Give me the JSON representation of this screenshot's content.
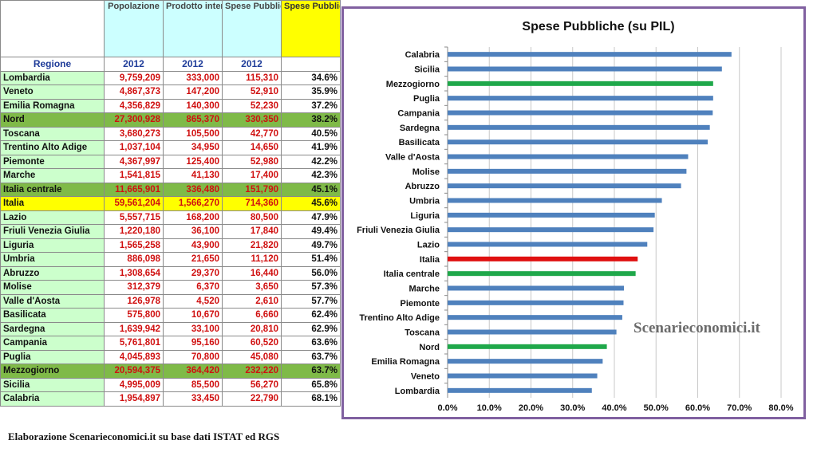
{
  "table": {
    "headers": {
      "popolazione": "Popolazione",
      "pil": "Prodotto interno lordo ai prezzi di mercato",
      "spese": "Spese Pubbliche (al netto interessi) MLN Euro",
      "spese_pil": "Spese Pubbliche (su PIL)"
    },
    "subheaders": {
      "regione": "Regione",
      "y1": "2012",
      "y2": "2012",
      "y3": "2012"
    },
    "rows": [
      {
        "name": "Lombardia",
        "pop": "9,759,209",
        "pil": "333,000",
        "spese": "115,310",
        "pct": "34.6%",
        "kind": "region"
      },
      {
        "name": "Veneto",
        "pop": "4,867,373",
        "pil": "147,200",
        "spese": "52,910",
        "pct": "35.9%",
        "kind": "region"
      },
      {
        "name": "Emilia Romagna",
        "pop": "4,356,829",
        "pil": "140,300",
        "spese": "52,230",
        "pct": "37.2%",
        "kind": "region"
      },
      {
        "name": "Nord",
        "pop": "27,300,928",
        "pil": "865,370",
        "spese": "330,350",
        "pct": "38.2%",
        "kind": "aggregate"
      },
      {
        "name": "Toscana",
        "pop": "3,680,273",
        "pil": "105,500",
        "spese": "42,770",
        "pct": "40.5%",
        "kind": "region"
      },
      {
        "name": "Trentino Alto Adige",
        "pop": "1,037,104",
        "pil": "34,950",
        "spese": "14,650",
        "pct": "41.9%",
        "kind": "region"
      },
      {
        "name": "Piemonte",
        "pop": "4,367,997",
        "pil": "125,400",
        "spese": "52,980",
        "pct": "42.2%",
        "kind": "region"
      },
      {
        "name": "Marche",
        "pop": "1,541,815",
        "pil": "41,130",
        "spese": "17,400",
        "pct": "42.3%",
        "kind": "region"
      },
      {
        "name": "Italia centrale",
        "pop": "11,665,901",
        "pil": "336,480",
        "spese": "151,790",
        "pct": "45.1%",
        "kind": "aggregate"
      },
      {
        "name": "Italia",
        "pop": "59,561,204",
        "pil": "1,566,270",
        "spese": "714,360",
        "pct": "45.6%",
        "kind": "italia"
      },
      {
        "name": "Lazio",
        "pop": "5,557,715",
        "pil": "168,200",
        "spese": "80,500",
        "pct": "47.9%",
        "kind": "region"
      },
      {
        "name": "Friuli Venezia Giulia",
        "pop": "1,220,180",
        "pil": "36,100",
        "spese": "17,840",
        "pct": "49.4%",
        "kind": "region"
      },
      {
        "name": "Liguria",
        "pop": "1,565,258",
        "pil": "43,900",
        "spese": "21,820",
        "pct": "49.7%",
        "kind": "region"
      },
      {
        "name": "Umbria",
        "pop": "886,098",
        "pil": "21,650",
        "spese": "11,120",
        "pct": "51.4%",
        "kind": "region"
      },
      {
        "name": "Abruzzo",
        "pop": "1,308,654",
        "pil": "29,370",
        "spese": "16,440",
        "pct": "56.0%",
        "kind": "region"
      },
      {
        "name": "Molise",
        "pop": "312,379",
        "pil": "6,370",
        "spese": "3,650",
        "pct": "57.3%",
        "kind": "region"
      },
      {
        "name": "Valle d'Aosta",
        "pop": "126,978",
        "pil": "4,520",
        "spese": "2,610",
        "pct": "57.7%",
        "kind": "region"
      },
      {
        "name": "Basilicata",
        "pop": "575,800",
        "pil": "10,670",
        "spese": "6,660",
        "pct": "62.4%",
        "kind": "region"
      },
      {
        "name": "Sardegna",
        "pop": "1,639,942",
        "pil": "33,100",
        "spese": "20,810",
        "pct": "62.9%",
        "kind": "region"
      },
      {
        "name": "Campania",
        "pop": "5,761,801",
        "pil": "95,160",
        "spese": "60,520",
        "pct": "63.6%",
        "kind": "region"
      },
      {
        "name": "Puglia",
        "pop": "4,045,893",
        "pil": "70,800",
        "spese": "45,080",
        "pct": "63.7%",
        "kind": "region"
      },
      {
        "name": "Mezzogiorno",
        "pop": "20,594,375",
        "pil": "364,420",
        "spese": "232,220",
        "pct": "63.7%",
        "kind": "aggregate"
      },
      {
        "name": "Sicilia",
        "pop": "4,995,009",
        "pil": "85,500",
        "spese": "56,270",
        "pct": "65.8%",
        "kind": "region"
      },
      {
        "name": "Calabria",
        "pop": "1,954,897",
        "pil": "33,450",
        "spese": "22,790",
        "pct": "68.1%",
        "kind": "region"
      }
    ]
  },
  "chart_data": {
    "type": "bar",
    "orientation": "horizontal",
    "title": "Spese Pubbliche (su PIL)",
    "categories": [
      "Calabria",
      "Sicilia",
      "Mezzogiorno",
      "Puglia",
      "Campania",
      "Sardegna",
      "Basilicata",
      "Valle d'Aosta",
      "Molise",
      "Abruzzo",
      "Umbria",
      "Liguria",
      "Friuli Venezia Giulia",
      "Lazio",
      "Italia",
      "Italia centrale",
      "Marche",
      "Piemonte",
      "Trentino Alto Adige",
      "Toscana",
      "Nord",
      "Emilia Romagna",
      "Veneto",
      "Lombardia"
    ],
    "values": [
      68.1,
      65.8,
      63.7,
      63.7,
      63.6,
      62.9,
      62.4,
      57.7,
      57.3,
      56.0,
      51.4,
      49.7,
      49.4,
      47.9,
      45.6,
      45.1,
      42.3,
      42.2,
      41.9,
      40.5,
      38.2,
      37.2,
      35.9,
      34.6
    ],
    "bar_colors": [
      "#4f81bd",
      "#4f81bd",
      "#1fa84a",
      "#4f81bd",
      "#4f81bd",
      "#4f81bd",
      "#4f81bd",
      "#4f81bd",
      "#4f81bd",
      "#4f81bd",
      "#4f81bd",
      "#4f81bd",
      "#4f81bd",
      "#4f81bd",
      "#e01010",
      "#1fa84a",
      "#4f81bd",
      "#4f81bd",
      "#4f81bd",
      "#4f81bd",
      "#1fa84a",
      "#4f81bd",
      "#4f81bd",
      "#4f81bd"
    ],
    "x_ticks": [
      "0.0%",
      "10.0%",
      "20.0%",
      "30.0%",
      "40.0%",
      "50.0%",
      "60.0%",
      "70.0%",
      "80.0%"
    ],
    "xlim": [
      0,
      80
    ],
    "grid": true,
    "watermark": "Scenarieconomici.it"
  },
  "caption": "Elaborazione Scenarieconomici.it su base dati ISTAT ed RGS"
}
